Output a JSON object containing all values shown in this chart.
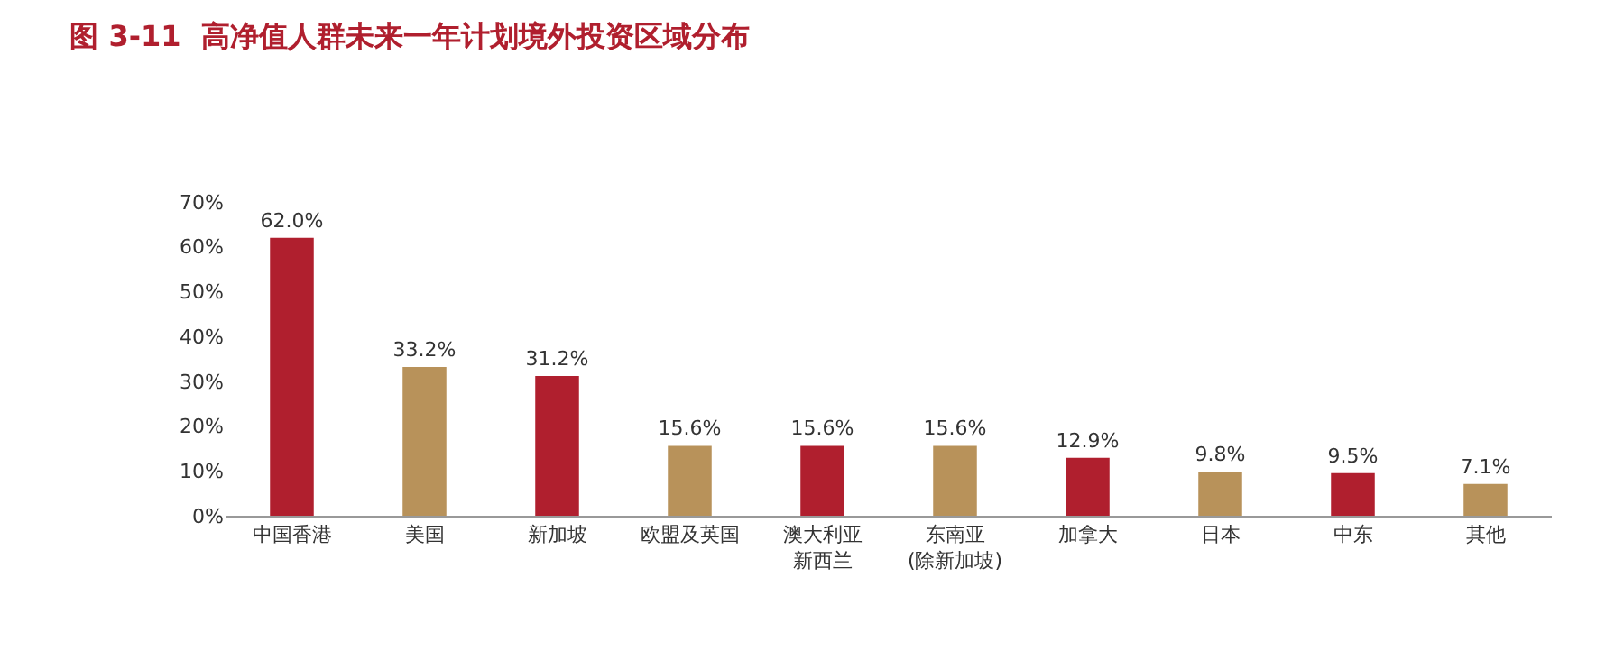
{
  "chart_data": {
    "type": "bar",
    "title": "图 3-11  高净值人群未来一年计划境外投资区域分布",
    "categories": [
      "中国香港",
      "美国",
      "新加坡",
      "欧盟及英国",
      "澳大利亚新西兰",
      "东南亚(除新加坡)",
      "加拿大",
      "日本",
      "中东",
      "其他"
    ],
    "values": [
      62.0,
      33.2,
      31.2,
      15.6,
      15.6,
      15.6,
      12.9,
      9.8,
      9.5,
      7.1
    ],
    "value_labels": [
      "62.0%",
      "33.2%",
      "31.2%",
      "15.6%",
      "15.6%",
      "15.6%",
      "12.9%",
      "9.8%",
      "9.5%",
      "7.1%"
    ],
    "colors": [
      "#b01f2e",
      "#b8925a",
      "#b01f2e",
      "#b8925a",
      "#b01f2e",
      "#b8925a",
      "#b01f2e",
      "#b8925a",
      "#b01f2e",
      "#b8925a"
    ],
    "ylim": [
      0,
      70
    ],
    "yticks": [
      {
        "value": 0,
        "label": "0%"
      },
      {
        "value": 10,
        "label": "10%"
      },
      {
        "value": 20,
        "label": "20%"
      },
      {
        "value": 30,
        "label": "30%"
      },
      {
        "value": 40,
        "label": "40%"
      },
      {
        "value": 50,
        "label": "50%"
      },
      {
        "value": 60,
        "label": "60%"
      },
      {
        "value": 70,
        "label": "70%"
      }
    ],
    "grid": false,
    "legend": false
  }
}
